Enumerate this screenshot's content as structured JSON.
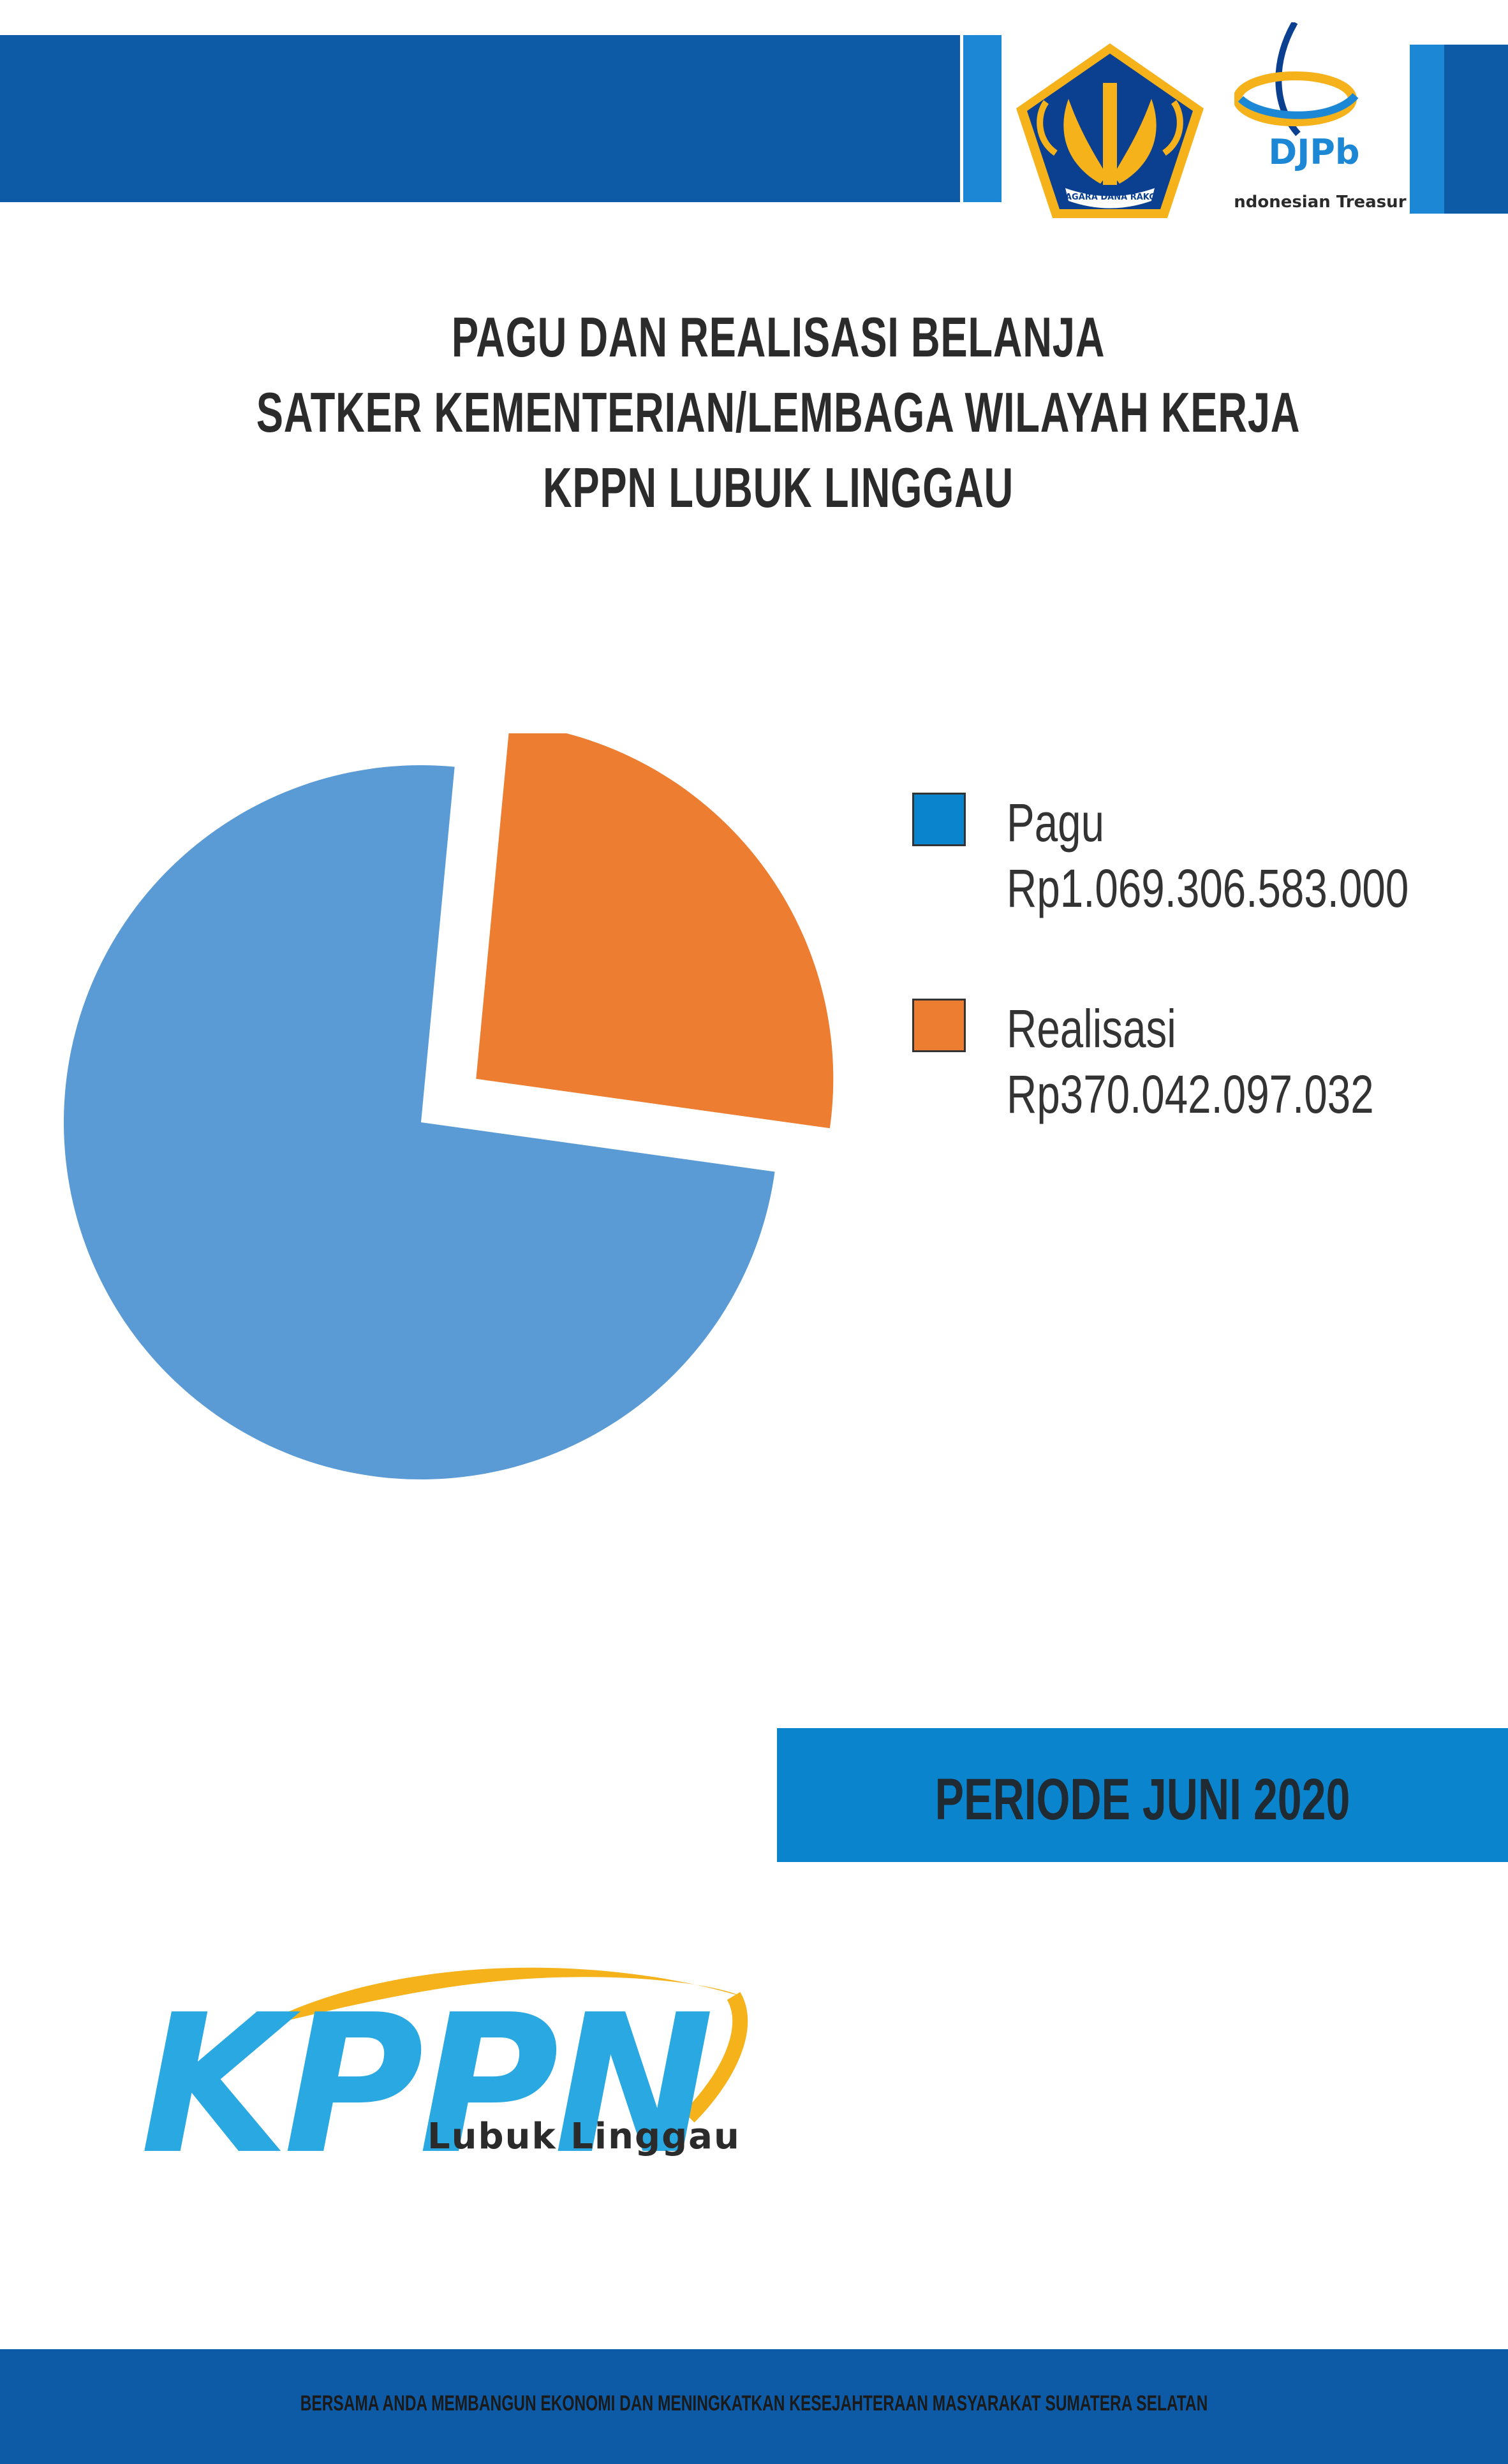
{
  "header": {
    "emblem_motto": "NAGARA DANA RAKCA",
    "djpb_logo_text": "DJPb",
    "djpb_tagline": "Indonesian Treasury"
  },
  "title": {
    "line1": "PAGU DAN REALISASI BELANJA",
    "line2": "SATKER KEMENTERIAN/LEMBAGA WILAYAH KERJA",
    "line3": "KPPN LUBUK LINGGAU"
  },
  "chart_data": {
    "type": "pie",
    "series": [
      {
        "name": "Pagu",
        "value_label": "Rp1.069.306.583.000",
        "value": 1069306583000,
        "color": "#5b9bd5"
      },
      {
        "name": "Realisasi",
        "value_label": "Rp370.042.097.032",
        "value": 370042097032,
        "color": "#ed7d31"
      }
    ],
    "legend_position": "right",
    "exploded_slice": "Realisasi"
  },
  "period": {
    "label": "PERIODE JUNI 2020"
  },
  "logo": {
    "wordmark": "KPPN",
    "subtitle": "Lubuk Linggau"
  },
  "footer": {
    "text": "BERSAMA ANDA MEMBANGUN EKONOMI DAN MENINGKATKAN KESEJAHTERAAN MASYARAKAT SUMATERA SELATAN"
  },
  "colors": {
    "primary_blue": "#0d5ba6",
    "accent_blue": "#0a84cc",
    "pagu_blue": "#5b9bd5",
    "realisasi_orange": "#ed7d31",
    "logo_gold": "#f6b21a"
  }
}
